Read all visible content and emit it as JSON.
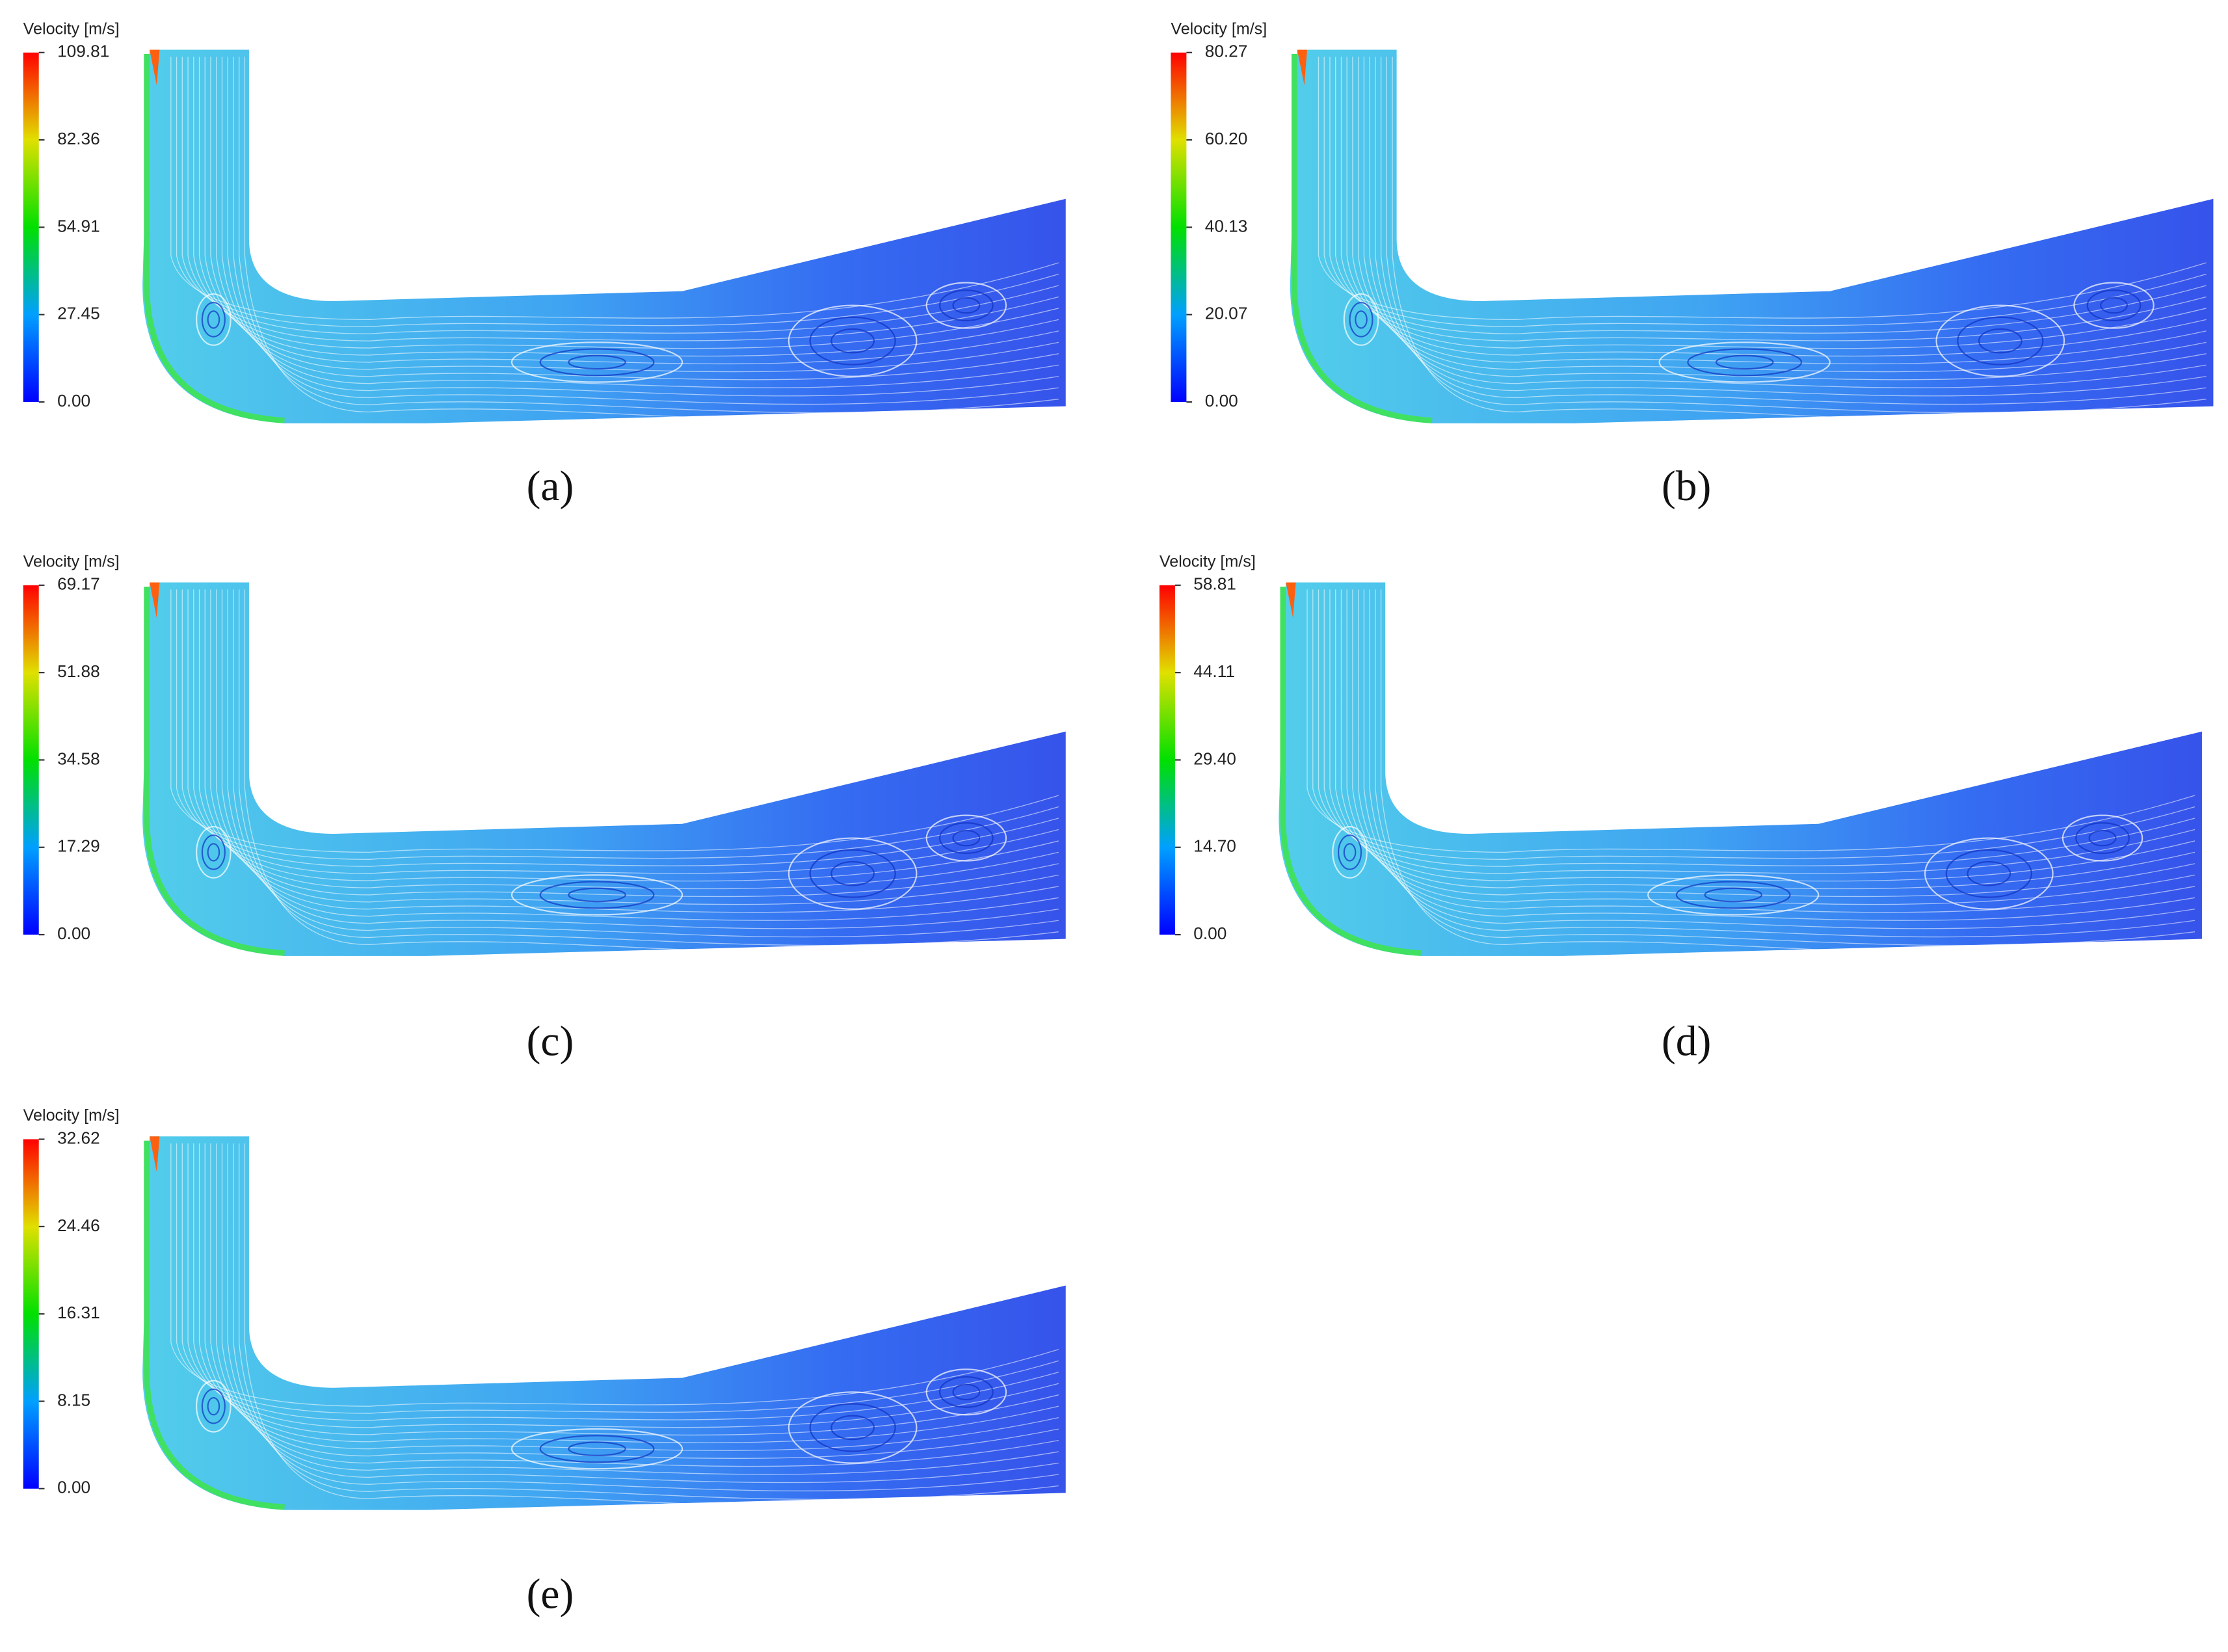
{
  "panels": [
    {
      "label": "(a)",
      "colorbar": {
        "title": "Velocity [m/s]",
        "ticks": [
          "109.81",
          "82.36",
          "54.91",
          "27.45",
          "0.00"
        ]
      }
    },
    {
      "label": "(b)",
      "colorbar": {
        "title": "Velocity [m/s]",
        "ticks": [
          "80.27",
          "60.20",
          "40.13",
          "20.07",
          "0.00"
        ]
      }
    },
    {
      "label": "(c)",
      "colorbar": {
        "title": "Velocity [m/s]",
        "ticks": [
          "69.17",
          "51.88",
          "34.58",
          "17.29",
          "0.00"
        ]
      }
    },
    {
      "label": "(d)",
      "colorbar": {
        "title": "Velocity [m/s]",
        "ticks": [
          "58.81",
          "44.11",
          "29.40",
          "14.70",
          "0.00"
        ]
      }
    },
    {
      "label": "(e)",
      "colorbar": {
        "title": "Velocity [m/s]",
        "ticks": [
          "32.62",
          "24.46",
          "16.31",
          "8.15",
          "0.00"
        ]
      }
    }
  ]
}
